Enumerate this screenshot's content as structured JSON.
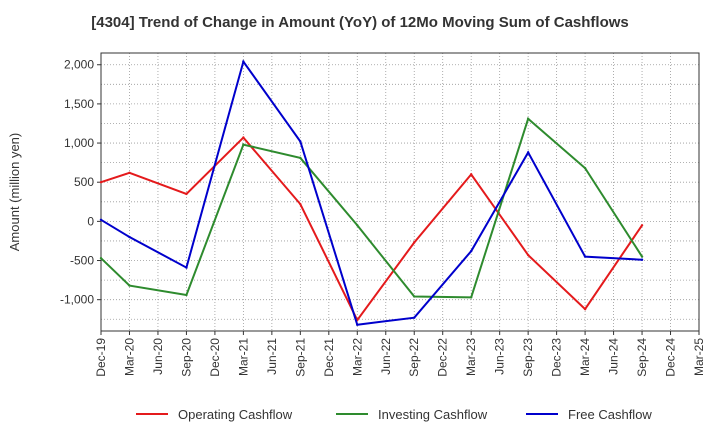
{
  "chart_data": {
    "type": "line",
    "title": "[4304]  Trend of Change in Amount (YoY) of 12Mo Moving Sum of Cashflows",
    "xlabel": "",
    "ylabel": "Amount (million yen)",
    "ylim": [
      -1400,
      2150
    ],
    "yticks": [
      2000,
      1500,
      1000,
      500,
      0,
      -500,
      -1000
    ],
    "ytick_labels": [
      "2,000",
      "1,500",
      "1,000",
      "500",
      "0",
      "-500",
      "-1,000"
    ],
    "categories": [
      "Dec-19",
      "Mar-20",
      "Jun-20",
      "Sep-20",
      "Dec-20",
      "Mar-21",
      "Jun-21",
      "Sep-21",
      "Dec-21",
      "Mar-22",
      "Jun-22",
      "Sep-22",
      "Dec-22",
      "Mar-23",
      "Jun-23",
      "Sep-23",
      "Dec-23",
      "Mar-24",
      "Jun-24",
      "Sep-24",
      "Dec-24",
      "Mar-25"
    ],
    "grid": true,
    "legend_position": "bottom",
    "series": [
      {
        "name": "Operating Cashflow",
        "color": "#e41a1c",
        "values": [
          500,
          620,
          null,
          350,
          null,
          1070,
          null,
          220,
          null,
          -1260,
          null,
          -270,
          null,
          600,
          null,
          -430,
          null,
          -1120,
          null,
          -50,
          null,
          null
        ]
      },
      {
        "name": "Investing Cashflow",
        "color": "#2e8b2e",
        "values": [
          -470,
          -820,
          null,
          -940,
          null,
          980,
          null,
          810,
          null,
          -50,
          null,
          -960,
          null,
          -970,
          null,
          1310,
          null,
          680,
          null,
          -450,
          null,
          null
        ]
      },
      {
        "name": "Free Cashflow",
        "color": "#0000cc",
        "values": [
          20,
          -200,
          null,
          -590,
          null,
          2040,
          null,
          1020,
          null,
          -1320,
          null,
          -1230,
          null,
          -380,
          null,
          880,
          null,
          -450,
          null,
          -490,
          null,
          null
        ]
      }
    ]
  }
}
